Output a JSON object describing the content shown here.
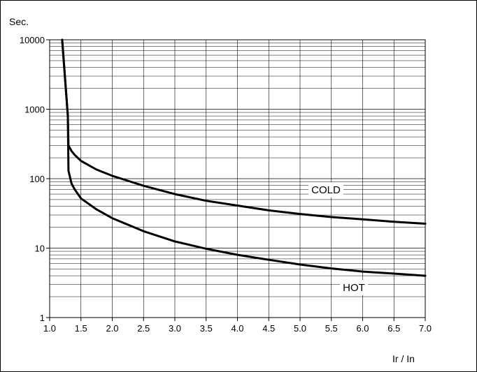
{
  "chart_data": {
    "type": "line",
    "title": "",
    "ylabel": "Sec.",
    "xlabel": "Ir / In",
    "xlim": [
      1.0,
      7.0
    ],
    "ylim": [
      1,
      10000
    ],
    "y_scale": "log",
    "grid": true,
    "x_ticks": [
      "1.0",
      "1.5",
      "2.0",
      "2.5",
      "3.0",
      "3.5",
      "4.0",
      "4.5",
      "5.0",
      "5.5",
      "6.0",
      "6.5",
      "7.0"
    ],
    "y_ticks": [
      "10000",
      "1000",
      "100",
      "10",
      "1"
    ],
    "series": [
      {
        "name": "COLD",
        "x": [
          1.2,
          1.29,
          1.3,
          1.35,
          1.4,
          1.5,
          1.75,
          2.0,
          2.5,
          3.0,
          3.5,
          4.0,
          4.5,
          5.0,
          5.5,
          6.0,
          6.5,
          7.0
        ],
        "y": [
          10000,
          800,
          300,
          250,
          220,
          180,
          135,
          110,
          79,
          60,
          48,
          41,
          35,
          31,
          28,
          26,
          24,
          22.5
        ]
      },
      {
        "name": "HOT",
        "x": [
          1.2,
          1.29,
          1.3,
          1.35,
          1.4,
          1.5,
          1.75,
          2.0,
          2.5,
          3.0,
          3.5,
          4.0,
          4.5,
          5.0,
          5.5,
          6.0,
          6.5,
          7.0
        ],
        "y": [
          10000,
          800,
          130,
          85,
          70,
          52,
          36,
          27,
          17.5,
          12.5,
          9.8,
          8.0,
          6.8,
          5.8,
          5.1,
          4.6,
          4.3,
          4.0
        ]
      }
    ]
  }
}
